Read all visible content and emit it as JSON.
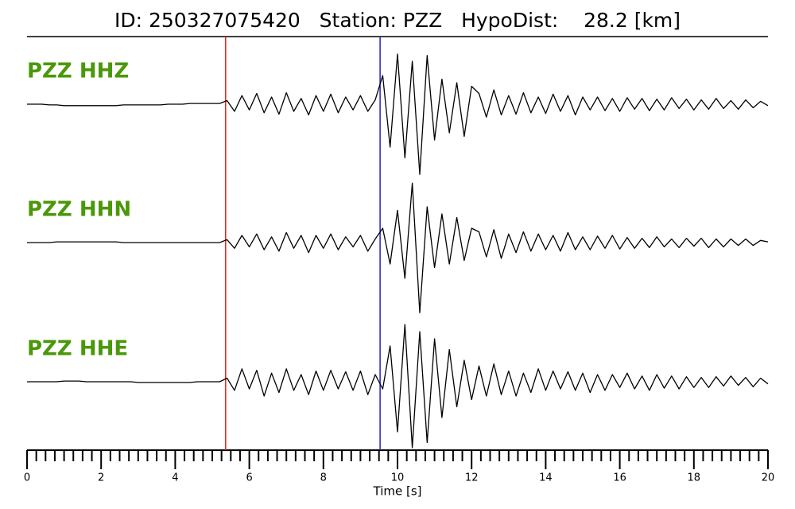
{
  "chart_data": {
    "type": "line",
    "title": "ID: 250327075420   Station: PZZ   HypoDist:    28.2 [km]",
    "xlabel": "Time [s]",
    "xlim": [
      0,
      20
    ],
    "xticks": [
      0,
      2,
      4,
      6,
      8,
      10,
      12,
      14,
      16,
      18,
      20
    ],
    "xticks_minor": [
      0.25,
      0.5,
      0.75,
      1,
      1.25,
      1.5,
      1.75,
      2.25,
      2.5,
      2.75,
      3,
      3.25,
      3.5,
      3.75,
      4.25,
      4.5,
      4.75,
      5,
      5.25,
      5.5,
      5.75,
      6.25,
      6.5,
      6.75,
      7,
      7.25,
      7.5,
      7.75,
      8.25,
      8.5,
      8.75,
      9,
      9.25,
      9.5,
      9.75,
      10.25,
      10.5,
      10.75,
      11,
      11.25,
      11.5,
      11.75,
      12.25,
      12.5,
      12.75,
      13,
      13.25,
      13.5,
      13.75,
      14.25,
      14.5,
      14.75,
      15,
      15.25,
      15.5,
      15.75,
      16.25,
      16.5,
      16.75,
      17,
      17.25,
      17.5,
      17.75,
      18.25,
      18.5,
      18.75,
      19,
      19.25,
      19.5,
      19.75
    ],
    "ylim": [
      -1,
      1
    ],
    "label_color": "#4a980a",
    "vlines": [
      {
        "x": 5.36,
        "color": "#e8201a"
      },
      {
        "x": 9.53,
        "color": "#2020c8"
      }
    ],
    "x": [
      0,
      0.2,
      0.4,
      0.6,
      0.8,
      1,
      1.2,
      1.4,
      1.6,
      1.8,
      2,
      2.2,
      2.4,
      2.6,
      2.8,
      3,
      3.2,
      3.4,
      3.6,
      3.8,
      4,
      4.2,
      4.4,
      4.6,
      4.8,
      5,
      5.2,
      5.4,
      5.6,
      5.8,
      6,
      6.2,
      6.4,
      6.6,
      6.8,
      7,
      7.2,
      7.4,
      7.6,
      7.8,
      8,
      8.2,
      8.4,
      8.6,
      8.8,
      9,
      9.2,
      9.4,
      9.6,
      9.8,
      10,
      10.2,
      10.4,
      10.6,
      10.8,
      11,
      11.2,
      11.4,
      11.6,
      11.8,
      12,
      12.2,
      12.4,
      12.6,
      12.8,
      13,
      13.2,
      13.4,
      13.6,
      13.8,
      14,
      14.2,
      14.4,
      14.6,
      14.8,
      15,
      15.2,
      15.4,
      15.6,
      15.8,
      16,
      16.2,
      16.4,
      16.6,
      16.8,
      17,
      17.2,
      17.4,
      17.6,
      17.8,
      18,
      18.2,
      18.4,
      18.6,
      18.8,
      19,
      19.2,
      19.4,
      19.6,
      19.8,
      20
    ],
    "series": [
      {
        "name": "PZZ HHZ",
        "color": "#000000",
        "values": [
          0,
          0,
          0,
          -0.01,
          -0.01,
          -0.02,
          -0.02,
          -0.02,
          -0.02,
          -0.02,
          -0.02,
          -0.02,
          -0.02,
          -0.01,
          -0.01,
          -0.01,
          -0.01,
          -0.01,
          -0.01,
          0,
          0,
          0,
          0.01,
          0.01,
          0.01,
          0.01,
          0.01,
          0.05,
          -0.1,
          0.12,
          -0.08,
          0.15,
          -0.12,
          0.1,
          -0.14,
          0.16,
          -0.1,
          0.08,
          -0.15,
          0.12,
          -0.1,
          0.14,
          -0.12,
          0.1,
          -0.08,
          0.12,
          -0.1,
          0.06,
          0.4,
          -0.6,
          0.7,
          -0.75,
          0.6,
          -0.98,
          0.68,
          -0.5,
          0.35,
          -0.4,
          0.3,
          -0.45,
          0.25,
          0.15,
          -0.18,
          0.2,
          -0.15,
          0.12,
          -0.14,
          0.16,
          -0.12,
          0.1,
          -0.13,
          0.14,
          -0.1,
          0.12,
          -0.15,
          0.1,
          -0.08,
          0.1,
          -0.09,
          0.08,
          -0.1,
          0.09,
          -0.07,
          0.08,
          -0.09,
          0.07,
          -0.08,
          0.09,
          -0.06,
          0.07,
          -0.08,
          0.06,
          -0.07,
          0.08,
          -0.06,
          0.05,
          -0.07,
          0.06,
          -0.05,
          0.04,
          -0.02
        ]
      },
      {
        "name": "PZZ HHN",
        "color": "#000000",
        "values": [
          0,
          0,
          0,
          0,
          0.01,
          0.01,
          0.01,
          0.01,
          0.01,
          0.01,
          0.01,
          0.01,
          0.01,
          0,
          0,
          0,
          0,
          0,
          0,
          0,
          0,
          0,
          0,
          0,
          0,
          0,
          0,
          0.04,
          -0.08,
          0.1,
          -0.06,
          0.12,
          -0.1,
          0.08,
          -0.12,
          0.14,
          -0.08,
          0.1,
          -0.14,
          0.1,
          -0.08,
          0.12,
          -0.1,
          0.08,
          -0.06,
          0.1,
          -0.12,
          0.05,
          0.2,
          -0.3,
          0.45,
          -0.5,
          0.83,
          -0.98,
          0.5,
          -0.35,
          0.4,
          -0.3,
          0.35,
          -0.25,
          0.2,
          0.15,
          -0.2,
          0.18,
          -0.22,
          0.12,
          -0.14,
          0.15,
          -0.12,
          0.12,
          -0.1,
          0.1,
          -0.12,
          0.14,
          -0.1,
          0.08,
          -0.1,
          0.09,
          -0.08,
          0.1,
          -0.09,
          0.07,
          -0.08,
          0.06,
          -0.07,
          0.08,
          -0.06,
          0.05,
          -0.07,
          0.06,
          -0.05,
          0.06,
          -0.07,
          0.05,
          -0.06,
          0.05,
          -0.04,
          0.05,
          -0.04,
          0.03,
          0.01
        ]
      },
      {
        "name": "PZZ HHE",
        "color": "#000000",
        "values": [
          0,
          0,
          0,
          0,
          0,
          0.01,
          0.01,
          0.01,
          0,
          0,
          0,
          0,
          0,
          0,
          0,
          -0.01,
          -0.01,
          -0.01,
          -0.01,
          -0.01,
          -0.01,
          -0.01,
          -0.01,
          0,
          0,
          0,
          0,
          0.05,
          -0.12,
          0.18,
          -0.1,
          0.16,
          -0.2,
          0.12,
          -0.15,
          0.18,
          -0.12,
          0.1,
          -0.18,
          0.15,
          -0.12,
          0.16,
          -0.1,
          0.14,
          -0.12,
          0.15,
          -0.18,
          0.1,
          -0.1,
          0.5,
          -0.7,
          0.8,
          -0.92,
          0.7,
          -0.85,
          0.6,
          -0.5,
          0.45,
          -0.35,
          0.3,
          -0.25,
          0.22,
          -0.2,
          0.25,
          -0.18,
          0.15,
          -0.2,
          0.12,
          -0.15,
          0.18,
          -0.12,
          0.15,
          -0.1,
          0.14,
          -0.12,
          0.12,
          -0.15,
          0.1,
          -0.12,
          0.1,
          -0.08,
          0.12,
          -0.1,
          0.08,
          -0.12,
          0.1,
          -0.09,
          0.08,
          -0.1,
          0.07,
          -0.08,
          0.06,
          -0.08,
          0.07,
          -0.06,
          0.08,
          -0.05,
          0.06,
          -0.07,
          0.05,
          -0.03
        ]
      }
    ]
  }
}
